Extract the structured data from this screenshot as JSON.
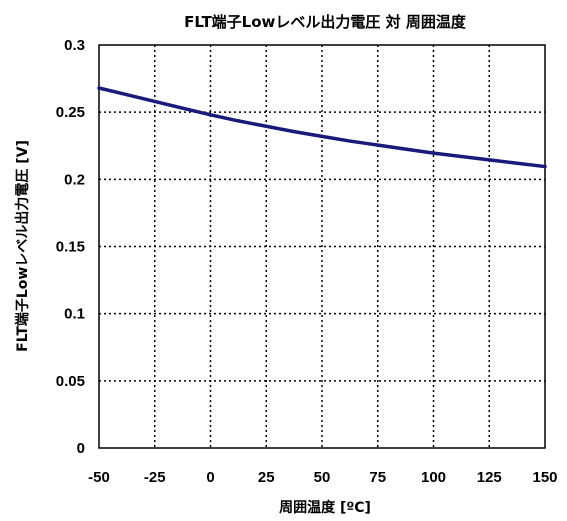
{
  "chart_data": {
    "type": "line",
    "title": "FLT端子Lowレベル出力電圧 対 周囲温度",
    "xlabel": "周囲温度 [ºC]",
    "ylabel": "FLT端子Lowレベル出力電圧 [V]",
    "xlim": [
      -50,
      150
    ],
    "ylim": [
      0,
      0.3
    ],
    "x_ticks": [
      -50,
      -25,
      0,
      25,
      50,
      75,
      100,
      125,
      150
    ],
    "y_ticks": [
      0,
      0.05,
      0.1,
      0.15,
      0.2,
      0.25,
      0.3
    ],
    "x_tick_labels": [
      "-50",
      "-25",
      "0",
      "25",
      "50",
      "75",
      "100",
      "125",
      "150"
    ],
    "y_tick_labels": [
      "0",
      "0.05",
      "0.1",
      "0.15",
      "0.2",
      "0.25",
      "0.3"
    ],
    "grid": true,
    "legend": false,
    "series": [
      {
        "color": "#1a1a7a",
        "x": [
          -50,
          -37.5,
          -25,
          -12.5,
          0,
          12.5,
          25,
          37.5,
          50,
          62.5,
          75,
          87.5,
          100,
          112.5,
          125,
          137.5,
          150
        ],
        "values": [
          0.268,
          0.263,
          0.258,
          0.253,
          0.248,
          0.2435,
          0.2395,
          0.2355,
          0.232,
          0.2285,
          0.2255,
          0.2225,
          0.2195,
          0.217,
          0.2145,
          0.212,
          0.2095
        ]
      }
    ]
  }
}
